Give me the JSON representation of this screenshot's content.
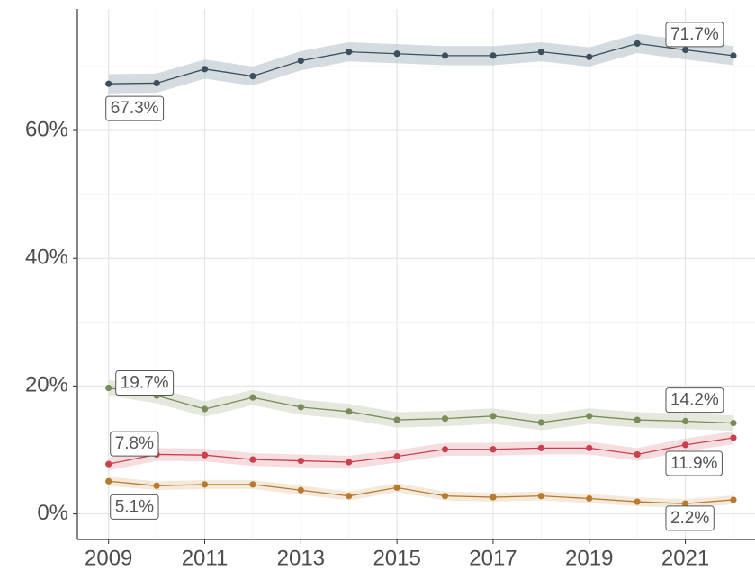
{
  "chart_data": {
    "type": "line",
    "x": [
      2009,
      2010,
      2011,
      2012,
      2013,
      2014,
      2015,
      2016,
      2017,
      2018,
      2019,
      2020,
      2021,
      2022
    ],
    "series": [
      {
        "color": "#3d4f5c",
        "band_color": "#b9c4c9",
        "values": [
          67.3,
          67.4,
          69.6,
          68.5,
          70.9,
          72.3,
          72.0,
          71.7,
          71.7,
          72.3,
          71.5,
          73.6,
          72.6,
          71.7
        ],
        "lower": [
          65.8,
          65.9,
          68.1,
          67.0,
          69.4,
          70.8,
          70.5,
          70.2,
          70.2,
          70.8,
          70.0,
          72.1,
          71.1,
          70.2
        ],
        "upper": [
          68.8,
          68.9,
          71.1,
          70.0,
          72.4,
          73.8,
          73.5,
          73.2,
          73.2,
          73.8,
          73.0,
          75.1,
          74.1,
          73.2
        ],
        "value_labels": [
          "67.3%",
          null,
          null,
          null,
          null,
          null,
          null,
          null,
          null,
          null,
          null,
          null,
          null,
          "71.7%"
        ]
      },
      {
        "color": "#7a8c5a",
        "band_color": "#d3d9c6",
        "values": [
          19.7,
          18.5,
          16.4,
          18.2,
          16.7,
          16.0,
          14.7,
          14.9,
          15.3,
          14.3,
          15.3,
          14.7,
          14.5,
          14.2
        ],
        "lower": [
          18.5,
          17.3,
          15.2,
          17.0,
          15.5,
          14.8,
          13.5,
          13.7,
          14.1,
          13.1,
          14.1,
          13.5,
          13.3,
          13.0
        ],
        "upper": [
          20.9,
          19.7,
          17.6,
          19.4,
          17.9,
          17.2,
          15.9,
          16.1,
          16.5,
          15.5,
          16.5,
          15.9,
          15.7,
          15.4
        ],
        "value_labels": [
          "19.7%",
          null,
          null,
          null,
          null,
          null,
          null,
          null,
          null,
          null,
          null,
          null,
          null,
          "14.2%"
        ]
      },
      {
        "color": "#c9404e",
        "band_color": "#f0c8cc",
        "values": [
          7.8,
          9.3,
          9.2,
          8.5,
          8.3,
          8.1,
          9.0,
          10.1,
          10.1,
          10.3,
          10.3,
          9.3,
          10.8,
          11.9
        ],
        "lower": [
          6.8,
          8.3,
          8.2,
          7.5,
          7.3,
          7.1,
          8.0,
          9.1,
          9.1,
          9.3,
          9.3,
          8.3,
          9.8,
          10.9
        ],
        "upper": [
          8.8,
          10.3,
          10.2,
          9.5,
          9.3,
          9.1,
          10.0,
          11.1,
          11.1,
          11.3,
          11.3,
          10.3,
          11.8,
          12.9
        ],
        "value_labels": [
          "7.8%",
          null,
          null,
          null,
          null,
          null,
          null,
          null,
          null,
          null,
          null,
          null,
          null,
          "11.9%"
        ]
      },
      {
        "color": "#b87a2e",
        "band_color": "#ecdcc3",
        "values": [
          5.1,
          4.4,
          4.6,
          4.6,
          3.7,
          2.8,
          4.1,
          2.8,
          2.6,
          2.8,
          2.4,
          1.9,
          1.6,
          2.2
        ],
        "lower": [
          4.4,
          3.7,
          3.9,
          3.9,
          3.0,
          2.1,
          3.4,
          2.1,
          1.9,
          2.1,
          1.7,
          1.2,
          0.9,
          1.5
        ],
        "upper": [
          5.8,
          5.1,
          5.3,
          5.3,
          4.4,
          3.5,
          4.8,
          3.5,
          3.3,
          3.5,
          3.1,
          2.6,
          2.3,
          2.9
        ],
        "value_labels": [
          "5.1%",
          null,
          null,
          null,
          null,
          null,
          null,
          null,
          null,
          null,
          null,
          null,
          null,
          "2.2%"
        ]
      }
    ],
    "xlim": [
      2008.35,
      2022.45
    ],
    "ylim": [
      -4,
      79
    ],
    "xticks": [
      2009,
      2011,
      2013,
      2015,
      2017,
      2019,
      2021
    ],
    "x_minor_ticks": [
      2010,
      2012,
      2014,
      2016,
      2018,
      2020,
      2022
    ],
    "yticks": [
      {
        "value": 0,
        "label": "0%"
      },
      {
        "value": 20,
        "label": "20%"
      },
      {
        "value": 40,
        "label": "40%"
      },
      {
        "value": 60,
        "label": "60%"
      }
    ],
    "y_minor_ticks": [
      10,
      30,
      50,
      70
    ],
    "grid": true
  }
}
